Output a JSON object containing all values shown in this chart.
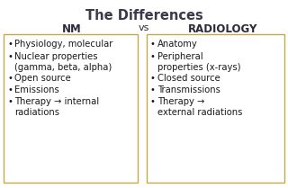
{
  "title": "The Differences",
  "col1_header": "NM",
  "vs_text": "vs",
  "col2_header": "RADIOLOGY",
  "col1_items": [
    "Physiology, molecular",
    "Nuclear properties\n(gamma, beta, alpha)",
    "Open source",
    "Emissions",
    "Therapy → internal\nradiations"
  ],
  "col2_items": [
    "Anatomy",
    "Peripheral\nproperties (x-rays)",
    "Closed source",
    "Transmissions",
    "Therapy →\nexternal radiations"
  ],
  "bg_color": "#ffffff",
  "box_bg": "#ffffff",
  "box_border": "#c8a84b",
  "title_color": "#3a3a4a",
  "header_color": "#2a2a3a",
  "text_color": "#1a1a1a",
  "title_fontsize": 10.5,
  "header_fontsize": 8.5,
  "item_fontsize": 7.2,
  "vs_fontsize": 8,
  "bullet": "•"
}
